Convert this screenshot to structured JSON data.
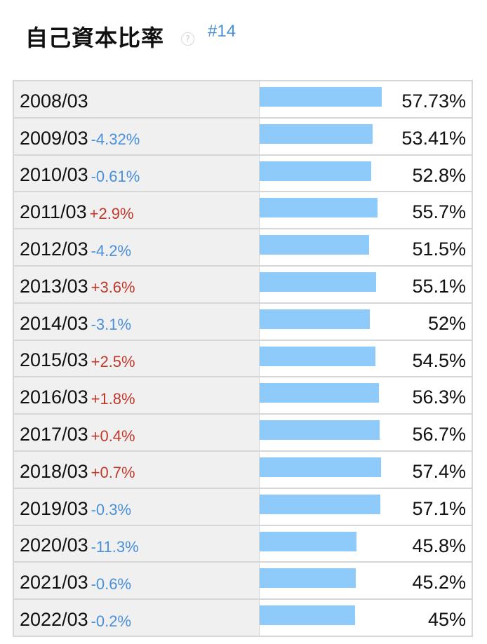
{
  "header": {
    "title": "自己資本比率",
    "help_icon": "?",
    "rank": "#14"
  },
  "colors": {
    "bar": "#8ecbfa",
    "negative_change": "#4a90d9",
    "positive_change": "#c0392b",
    "rank_link": "#4a90d9"
  },
  "chart_data": {
    "type": "bar",
    "orientation": "horizontal",
    "title": "自己資本比率",
    "categories": [
      "2008/03",
      "2009/03",
      "2010/03",
      "2011/03",
      "2012/03",
      "2013/03",
      "2014/03",
      "2015/03",
      "2016/03",
      "2017/03",
      "2018/03",
      "2019/03",
      "2020/03",
      "2021/03",
      "2022/03"
    ],
    "values": [
      57.73,
      53.41,
      52.8,
      55.7,
      51.5,
      55.1,
      52,
      54.5,
      56.3,
      56.7,
      57.4,
      57.1,
      45.8,
      45.2,
      45
    ],
    "value_labels": [
      "57.73%",
      "53.41%",
      "52.8%",
      "55.7%",
      "51.5%",
      "55.1%",
      "52%",
      "54.5%",
      "56.3%",
      "56.7%",
      "57.4%",
      "57.1%",
      "45.8%",
      "45.2%",
      "45%"
    ],
    "changes": [
      "",
      "-4.32%",
      "-0.61%",
      "+2.9%",
      "-4.2%",
      "+3.6%",
      "-3.1%",
      "+2.5%",
      "+1.8%",
      "+0.4%",
      "+0.7%",
      "-0.3%",
      "-11.3%",
      "-0.6%",
      "-0.2%"
    ],
    "unit": "%",
    "xlim": [
      0,
      100
    ]
  }
}
